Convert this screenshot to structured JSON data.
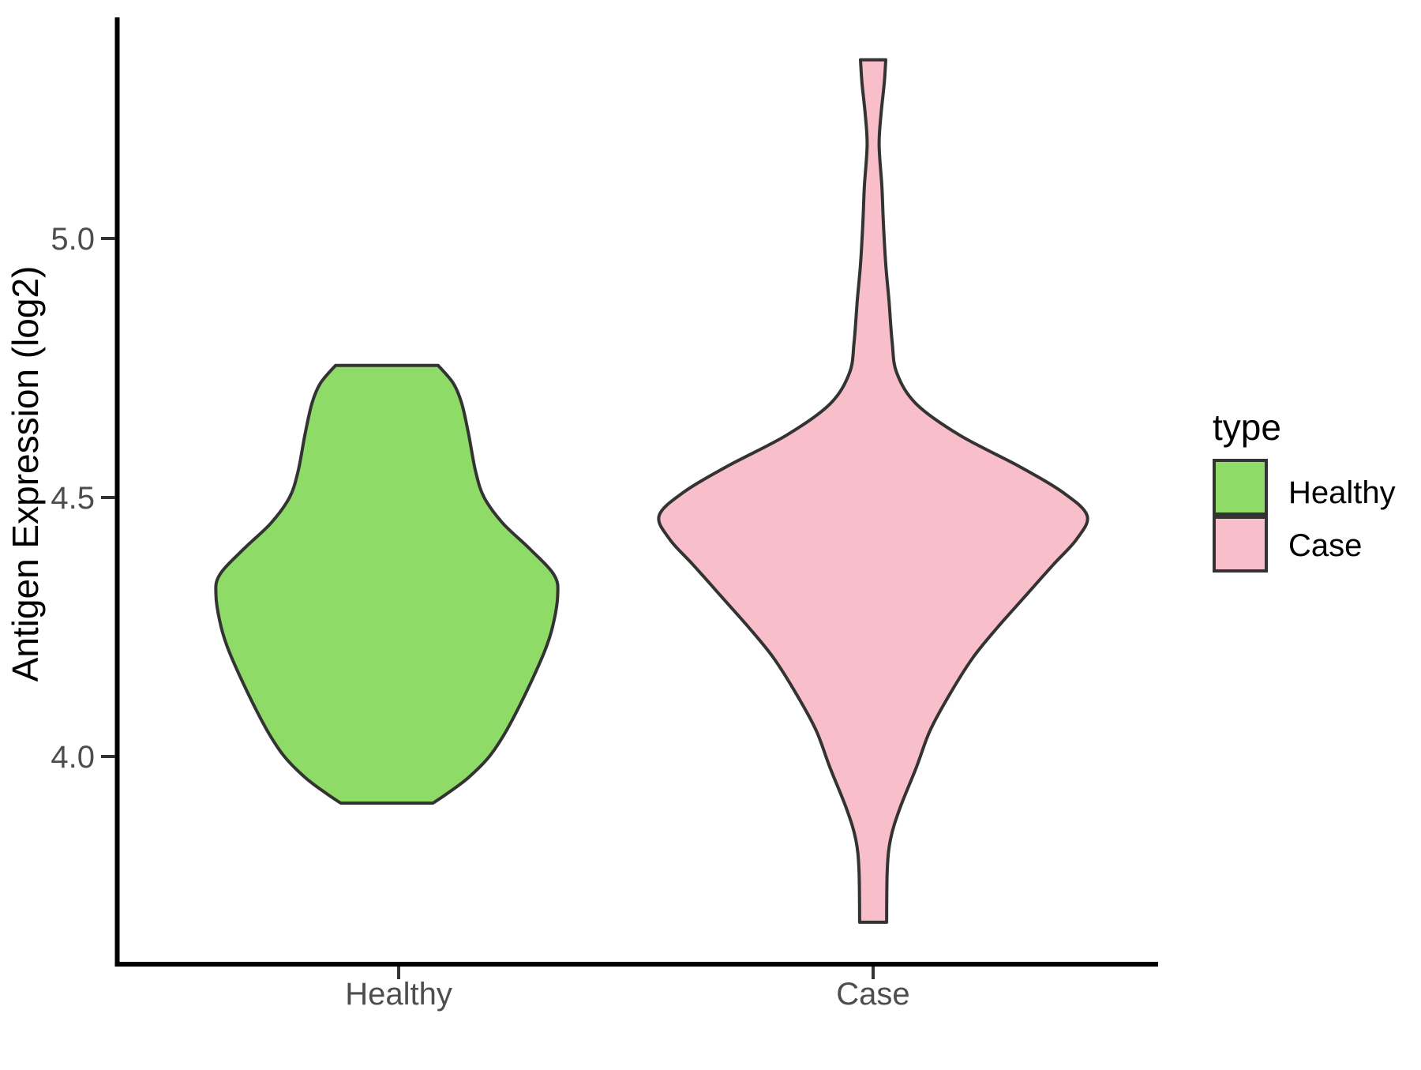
{
  "chart_data": {
    "type": "violin",
    "title": "",
    "ylabel": "Antigen Expression (log2)",
    "xlabel": "",
    "y_axis": {
      "range": [
        3.6,
        5.43
      ],
      "ticks": [
        {
          "value": 5.0,
          "label": "5.0"
        },
        {
          "value": 4.5,
          "label": "4.5"
        },
        {
          "value": 4.0,
          "label": "4.0"
        }
      ]
    },
    "x_axis": {
      "categories": [
        "Healthy",
        "Case"
      ]
    },
    "legend": {
      "title": "type",
      "position": "right",
      "entries": [
        {
          "label": "Healthy",
          "color": "#8edb68"
        },
        {
          "label": "Case",
          "color": "#f8bfca"
        }
      ]
    },
    "style": {
      "outline_color": "#333333",
      "axis_color": "#000000",
      "tick_text_color": "#4d4d4d",
      "background": "#ffffff",
      "grid": "off"
    },
    "violins": [
      {
        "category": "Healthy",
        "fill": "#8edb68",
        "outline": "#333333",
        "y_min": 3.91,
        "y_max": 4.76,
        "width_max_units": 0.36,
        "profile": [
          [
            4.755,
            0.3
          ],
          [
            4.72,
            0.39
          ],
          [
            4.68,
            0.44
          ],
          [
            4.62,
            0.48
          ],
          [
            4.55,
            0.52
          ],
          [
            4.5,
            0.57
          ],
          [
            4.45,
            0.68
          ],
          [
            4.4,
            0.84
          ],
          [
            4.35,
            0.98
          ],
          [
            4.31,
            1.0
          ],
          [
            4.25,
            0.97
          ],
          [
            4.2,
            0.92
          ],
          [
            4.12,
            0.81
          ],
          [
            4.05,
            0.7
          ],
          [
            4.0,
            0.6
          ],
          [
            3.96,
            0.48
          ],
          [
            3.93,
            0.36
          ],
          [
            3.91,
            0.27
          ]
        ]
      },
      {
        "category": "Case",
        "fill": "#f8bfca",
        "outline": "#333333",
        "y_min": 3.68,
        "y_max": 5.35,
        "width_max_units": 0.451,
        "profile": [
          [
            5.345,
            0.059
          ],
          [
            5.3,
            0.052
          ],
          [
            5.24,
            0.037
          ],
          [
            5.18,
            0.028
          ],
          [
            5.1,
            0.041
          ],
          [
            5.03,
            0.048
          ],
          [
            4.95,
            0.059
          ],
          [
            4.88,
            0.074
          ],
          [
            4.8,
            0.089
          ],
          [
            4.74,
            0.111
          ],
          [
            4.68,
            0.203
          ],
          [
            4.62,
            0.406
          ],
          [
            4.56,
            0.683
          ],
          [
            4.51,
            0.886
          ],
          [
            4.465,
            1.0
          ],
          [
            4.42,
            0.952
          ],
          [
            4.37,
            0.841
          ],
          [
            4.31,
            0.712
          ],
          [
            4.25,
            0.583
          ],
          [
            4.19,
            0.465
          ],
          [
            4.12,
            0.358
          ],
          [
            4.05,
            0.266
          ],
          [
            3.98,
            0.203
          ],
          [
            3.9,
            0.125
          ],
          [
            3.84,
            0.081
          ],
          [
            3.78,
            0.066
          ],
          [
            3.68,
            0.063
          ]
        ]
      }
    ]
  }
}
